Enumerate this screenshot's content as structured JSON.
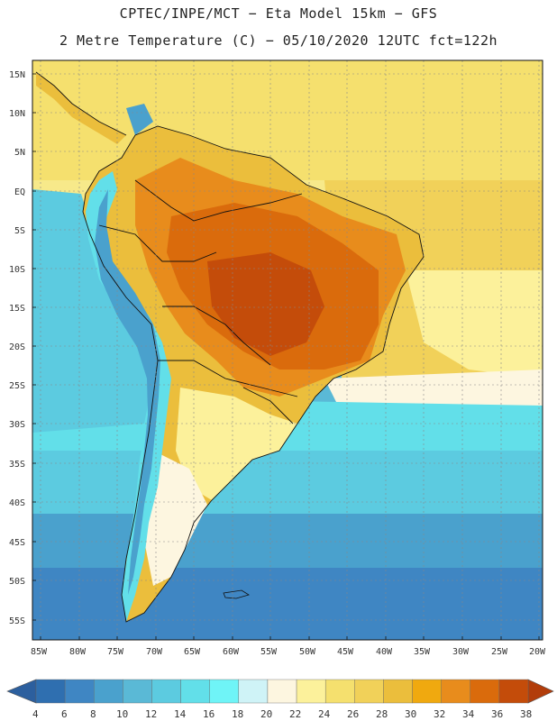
{
  "title": {
    "line1": "CPTEC/INPE/MCT −  Eta Model 15km − GFS",
    "line2": "2 Metre Temperature (C) − 05/10/2020 12UTC fct=122h"
  },
  "map": {
    "latitude_labels": [
      "15N",
      "10N",
      "5N",
      "EQ",
      "5S",
      "10S",
      "15S",
      "20S",
      "25S",
      "30S",
      "35S",
      "40S",
      "45S",
      "50S",
      "55S"
    ],
    "longitude_labels": [
      "85W",
      "80W",
      "75W",
      "70W",
      "65W",
      "60W",
      "55W",
      "50W",
      "45W",
      "40W",
      "35W",
      "30W",
      "25W",
      "20W"
    ]
  },
  "colorbar": {
    "labels": [
      "4",
      "6",
      "8",
      "10",
      "12",
      "14",
      "16",
      "18",
      "20",
      "22",
      "24",
      "26",
      "28",
      "30",
      "32",
      "34",
      "36",
      "38"
    ],
    "colors": [
      "#2f6fb0",
      "#3f86c3",
      "#4aa1cd",
      "#5ab9d6",
      "#5ccbe0",
      "#62dfe9",
      "#6ff4f7",
      "#cff3f7",
      "#fdf6e0",
      "#fcf19b",
      "#f5e06e",
      "#f1d159",
      "#ebbe3c",
      "#f0a90f",
      "#e88c1c",
      "#da6b0c",
      "#c44c0a"
    ],
    "low_color": "#2c5f9e",
    "high_color": "#b23d0a"
  }
}
